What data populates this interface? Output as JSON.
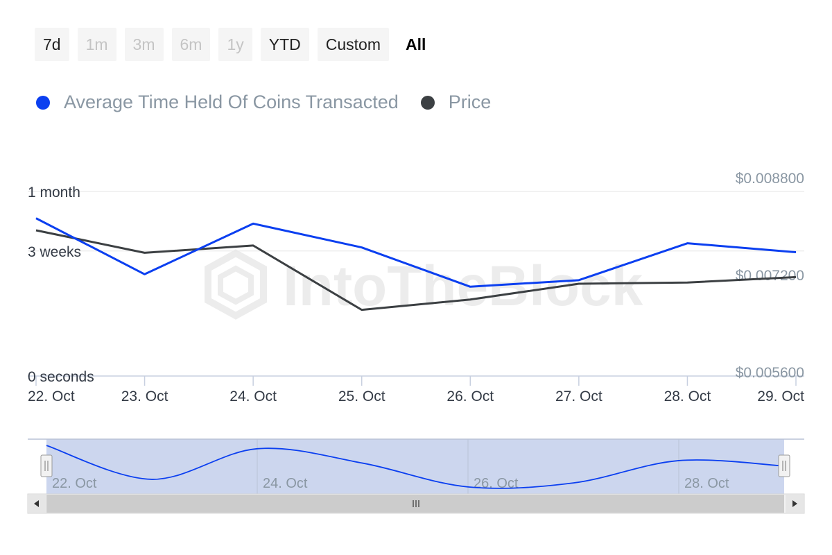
{
  "range_buttons": [
    {
      "label": "7d",
      "state": "enabled"
    },
    {
      "label": "1m",
      "state": "disabled"
    },
    {
      "label": "3m",
      "state": "disabled"
    },
    {
      "label": "6m",
      "state": "disabled"
    },
    {
      "label": "1y",
      "state": "disabled"
    },
    {
      "label": "YTD",
      "state": "enabled"
    },
    {
      "label": "Custom",
      "state": "enabled"
    },
    {
      "label": "All",
      "state": "selected"
    }
  ],
  "watermark": "IntoTheBlock",
  "colors": {
    "series_blue": "#0b3ff0",
    "series_dark": "#3c4043",
    "grid": "#e6e6e6",
    "navigator_fill": "#ccd6ee"
  },
  "chart_data": {
    "type": "line",
    "legend_placement": "top-left",
    "x": [
      "22. Oct",
      "23. Oct",
      "24. Oct",
      "25. Oct",
      "26. Oct",
      "27. Oct",
      "28. Oct",
      "29. Oct"
    ],
    "series": [
      {
        "name": "Average Time Held Of Coins Transacted",
        "axis": "left",
        "color": "#0b3ff0",
        "values_days": [
          26.5,
          17.1,
          25.6,
          21.6,
          15.0,
          16.1,
          22.3,
          20.8
        ]
      },
      {
        "name": "Price",
        "axis": "right",
        "color": "#3c4043",
        "values": [
          0.008,
          0.00763,
          0.00775,
          0.00669,
          0.00686,
          0.00712,
          0.00714,
          0.00723
        ]
      }
    ],
    "y_left": {
      "ticks": [
        {
          "label": "0 seconds",
          "value_days": 0
        },
        {
          "label": "3 weeks",
          "value_days": 21
        },
        {
          "label": "1 month",
          "value_days": 31
        }
      ],
      "range_days": [
        0,
        31
      ]
    },
    "y_right": {
      "ticks": [
        "$0.005600",
        "$0.007200",
        "$0.008800"
      ],
      "tick_values": [
        0.0056,
        0.0072,
        0.0088
      ],
      "range": [
        0.0056,
        0.0088
      ]
    },
    "grid": true,
    "navigator": {
      "labels": [
        "22. Oct",
        "24. Oct",
        "26. Oct",
        "28. Oct"
      ]
    }
  }
}
